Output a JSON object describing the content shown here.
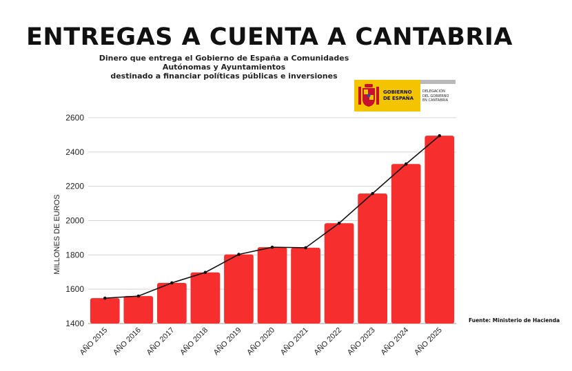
{
  "header": {
    "title": "ENTREGAS A CUENTA A CANTABRIA",
    "subtitle_line1": "Dinero que entrega el Gobierno de España a Comunidades Autónomas y Ayuntamientos",
    "subtitle_line2": "destinado a financiar políticas públicas e inversiones"
  },
  "logo": {
    "line1": "GOBIERNO",
    "line2": "DE ESPAÑA",
    "sub1": "DELEGACIÓN",
    "sub2": "DEL GOBIERNO",
    "sub3": "EN CANTABRIA",
    "yellow": "#f5c400",
    "red": "#c8102e"
  },
  "source": "Fuente: Ministerio de Hacienda",
  "chart_data": {
    "type": "bar",
    "title": "ENTREGAS A CUENTA A CANTABRIA",
    "ylabel": "MILLONES DE EUROS",
    "xlabel": "",
    "ylim": [
      1400,
      2600
    ],
    "yticks": [
      1400,
      1600,
      1800,
      2000,
      2200,
      2400,
      2600
    ],
    "grid": true,
    "categories": [
      "AÑO 2015",
      "AÑO 2016",
      "AÑO 2017",
      "AÑO 2018",
      "AÑO 2019",
      "AÑO 2020",
      "AÑO 2021",
      "AÑO 2022",
      "AÑO 2023",
      "AÑO 2024",
      "AÑO 2025"
    ],
    "values": [
      1548,
      1560,
      1637,
      1698,
      1803,
      1845,
      1842,
      1985,
      2158,
      2330,
      2495
    ],
    "bar_color": "#f62e2e",
    "line_color": "#111111",
    "overlay": "line"
  }
}
